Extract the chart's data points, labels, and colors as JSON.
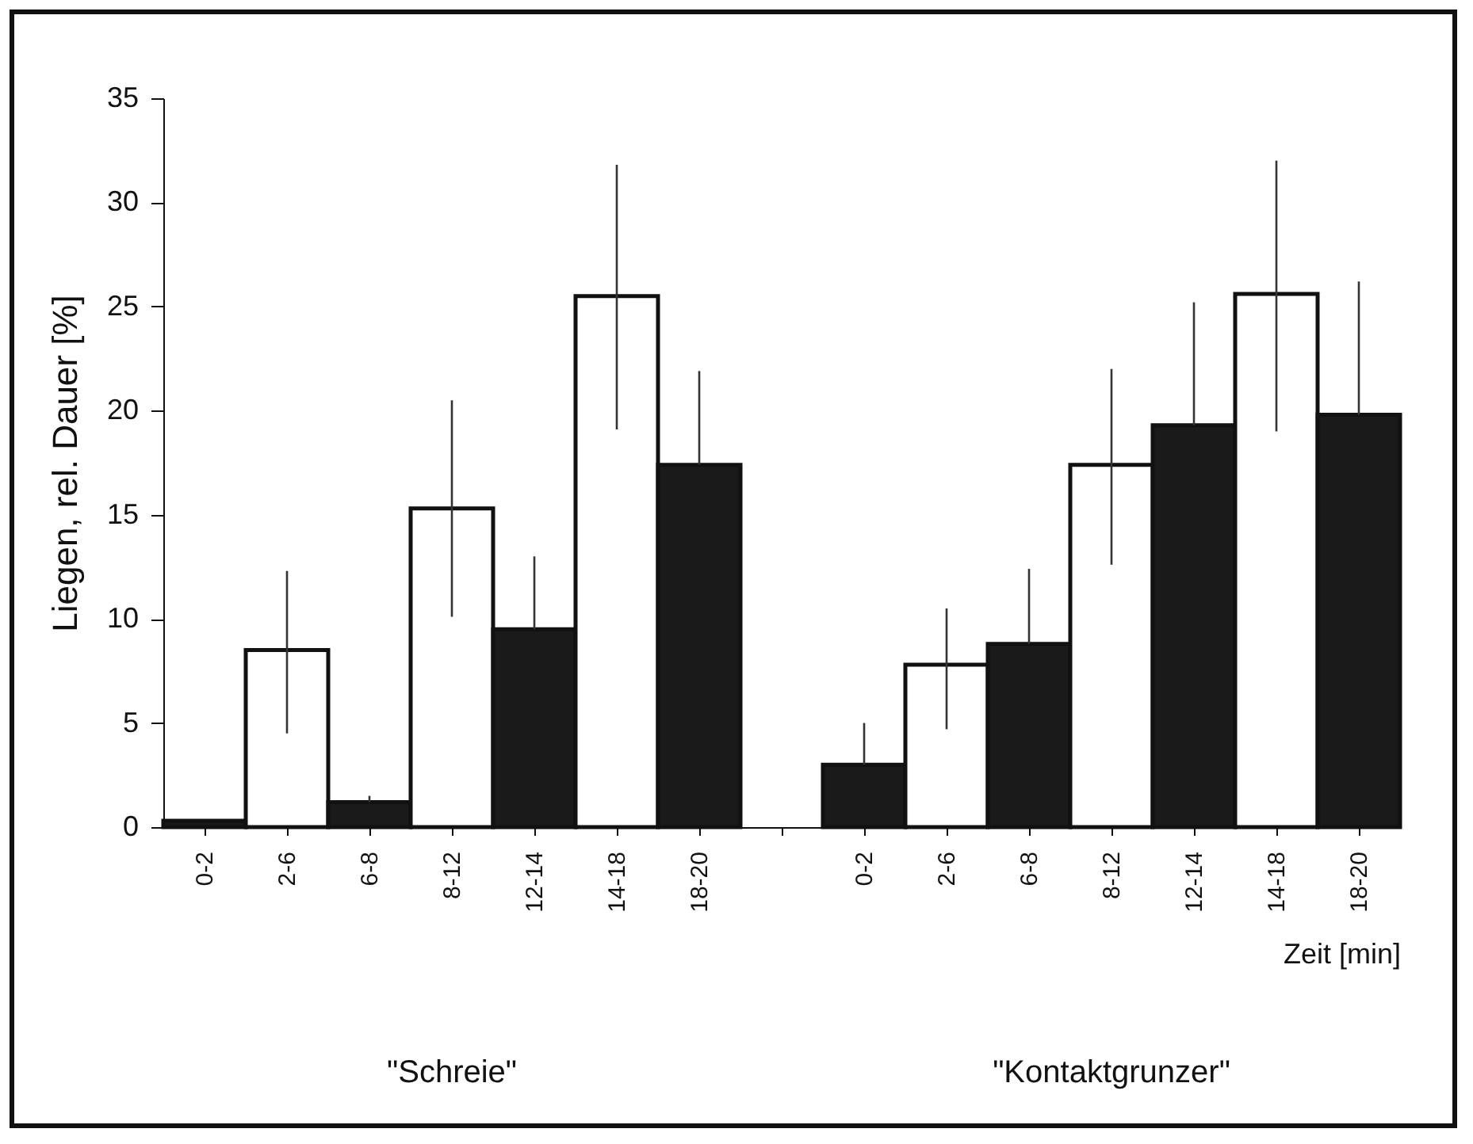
{
  "chart_data": {
    "type": "bar",
    "ylabel": "Liegen, rel. Dauer  [%]",
    "xlabel": "Zeit  [min]",
    "categories": [
      "0-2",
      "2-6",
      "6-8",
      "8-12",
      "12-14",
      "14-18",
      "18-20",
      null,
      "0-2",
      "2-6",
      "6-8",
      "8-12",
      "12-14",
      "14-18",
      "18-20"
    ],
    "values": [
      0.3,
      8.5,
      1.2,
      15.3,
      9.5,
      25.5,
      17.4,
      null,
      3.0,
      7.8,
      8.8,
      17.4,
      19.3,
      25.6,
      19.8
    ],
    "colors": [
      "#1a1a1a",
      "#ffffff",
      "#1a1a1a",
      "#ffffff",
      "#1a1a1a",
      "#ffffff",
      "#1a1a1a",
      null,
      "#1a1a1a",
      "#ffffff",
      "#1a1a1a",
      "#ffffff",
      "#1a1a1a",
      "#ffffff",
      "#1a1a1a"
    ],
    "errors": [
      null,
      [
        4.5,
        12.3
      ],
      [
        1.2,
        1.5
      ],
      [
        10.1,
        20.5
      ],
      [
        9.5,
        13.0
      ],
      [
        19.1,
        31.8
      ],
      [
        17.4,
        21.9
      ],
      null,
      [
        3.0,
        5.0
      ],
      [
        4.7,
        10.5
      ],
      [
        8.8,
        12.4
      ],
      [
        12.6,
        22.0
      ],
      [
        19.3,
        25.2
      ],
      [
        19.0,
        32.0
      ],
      [
        19.8,
        26.2
      ]
    ],
    "ylim": [
      0,
      35
    ],
    "yticks": [
      0,
      5,
      10,
      15,
      20,
      25,
      30,
      35
    ],
    "grid": false,
    "annotations": [
      "\"Schreie\"",
      "\"Kontaktgrunzer\""
    ]
  }
}
